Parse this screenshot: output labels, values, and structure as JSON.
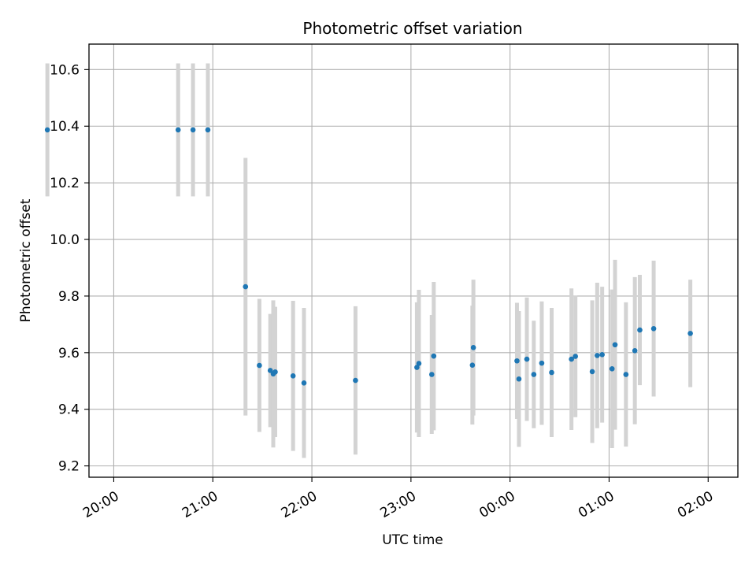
{
  "chart_data": {
    "type": "scatter",
    "title": "Photometric offset variation",
    "xlabel": "UTC time",
    "ylabel": "Photometric offset",
    "x_unit": "UTC time (hours since 19:00 of the first night; values past 24 fall after midnight)",
    "xlim": [
      0.75,
      7.3
    ],
    "ylim": [
      9.16,
      10.69
    ],
    "grid": true,
    "xticks": [
      {
        "value": 1,
        "label": "20:00"
      },
      {
        "value": 2,
        "label": "21:00"
      },
      {
        "value": 3,
        "label": "22:00"
      },
      {
        "value": 4,
        "label": "23:00"
      },
      {
        "value": 5,
        "label": "00:00"
      },
      {
        "value": 6,
        "label": "01:00"
      },
      {
        "value": 7,
        "label": "02:00"
      }
    ],
    "yticks": [
      9.2,
      9.4,
      9.6,
      9.8,
      10.0,
      10.2,
      10.4,
      10.6
    ],
    "colors": {
      "marker": "#1f77b4",
      "errorbar": "#d3d3d3",
      "grid": "#b0b0b0"
    },
    "points": [
      {
        "x": 0.33,
        "y": 10.387,
        "err": 0.235
      },
      {
        "x": 1.65,
        "y": 10.387,
        "err": 0.235
      },
      {
        "x": 1.8,
        "y": 10.387,
        "err": 0.235
      },
      {
        "x": 1.95,
        "y": 10.387,
        "err": 0.235
      },
      {
        "x": 2.33,
        "y": 9.833,
        "err": 0.455
      },
      {
        "x": 2.47,
        "y": 9.555,
        "err": 0.235
      },
      {
        "x": 2.58,
        "y": 9.537,
        "err": 0.2
      },
      {
        "x": 2.61,
        "y": 9.525,
        "err": 0.26
      },
      {
        "x": 2.63,
        "y": 9.532,
        "err": 0.23
      },
      {
        "x": 2.81,
        "y": 9.518,
        "err": 0.265
      },
      {
        "x": 2.92,
        "y": 9.493,
        "err": 0.265
      },
      {
        "x": 3.44,
        "y": 9.502,
        "err": 0.262
      },
      {
        "x": 4.06,
        "y": 9.548,
        "err": 0.23
      },
      {
        "x": 4.08,
        "y": 9.562,
        "err": 0.26
      },
      {
        "x": 4.21,
        "y": 9.523,
        "err": 0.21
      },
      {
        "x": 4.23,
        "y": 9.588,
        "err": 0.262
      },
      {
        "x": 4.62,
        "y": 9.556,
        "err": 0.21
      },
      {
        "x": 4.63,
        "y": 9.618,
        "err": 0.24
      },
      {
        "x": 5.07,
        "y": 9.571,
        "err": 0.205
      },
      {
        "x": 5.09,
        "y": 9.507,
        "err": 0.24
      },
      {
        "x": 5.17,
        "y": 9.577,
        "err": 0.218
      },
      {
        "x": 5.24,
        "y": 9.523,
        "err": 0.19
      },
      {
        "x": 5.32,
        "y": 9.563,
        "err": 0.218
      },
      {
        "x": 5.42,
        "y": 9.53,
        "err": 0.228
      },
      {
        "x": 5.62,
        "y": 9.577,
        "err": 0.25
      },
      {
        "x": 5.66,
        "y": 9.587,
        "err": 0.215
      },
      {
        "x": 5.83,
        "y": 9.533,
        "err": 0.252
      },
      {
        "x": 5.88,
        "y": 9.59,
        "err": 0.257
      },
      {
        "x": 5.93,
        "y": 9.593,
        "err": 0.24
      },
      {
        "x": 6.03,
        "y": 9.543,
        "err": 0.28
      },
      {
        "x": 6.06,
        "y": 9.628,
        "err": 0.3
      },
      {
        "x": 6.17,
        "y": 9.523,
        "err": 0.255
      },
      {
        "x": 6.26,
        "y": 9.607,
        "err": 0.26
      },
      {
        "x": 6.31,
        "y": 9.68,
        "err": 0.195
      },
      {
        "x": 6.45,
        "y": 9.685,
        "err": 0.24
      },
      {
        "x": 6.82,
        "y": 9.668,
        "err": 0.19
      }
    ]
  }
}
